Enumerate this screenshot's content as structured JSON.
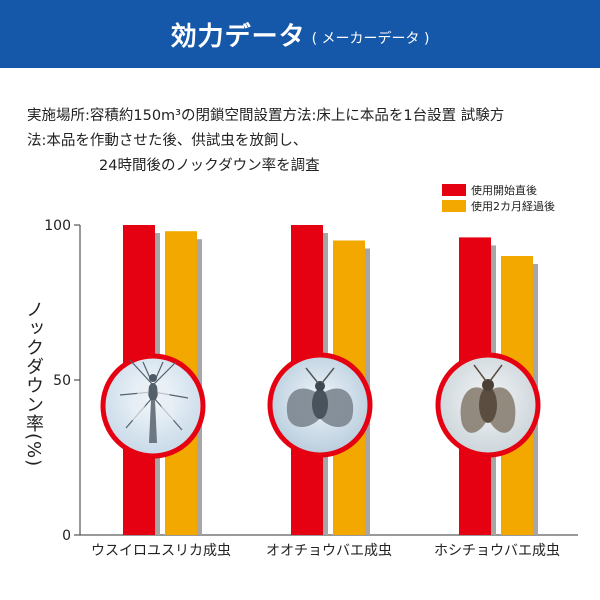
{
  "header": {
    "title": "効力データ",
    "subtitle": "( メーカーデータ )"
  },
  "description": {
    "line1": "実施場所:容積約150m³の閉鎖空間設置方法:床上に本品を1台設置 試験方",
    "line2": "法:本品を作動させた後、供試虫を放飼し、",
    "line3": "24時間後のノックダウン率を調査"
  },
  "colors": {
    "header": "#1557a8",
    "series1": "#e50012",
    "series2": "#f3a800",
    "shadow": "#a6a6a6"
  },
  "chart_data": {
    "type": "bar",
    "ylabel": "ノックダウン率(%)",
    "ylim": [
      0,
      100
    ],
    "yticks": [
      0,
      50,
      100
    ],
    "categories": [
      "ウスイロユスリカ成虫",
      "オオチョウバエ成虫",
      "ホシチョウバエ成虫"
    ],
    "series": [
      {
        "name": "使用開始直後",
        "values": [
          100,
          100,
          96
        ]
      },
      {
        "name": "使用2カ月経過後",
        "values": [
          98,
          95,
          90
        ]
      }
    ],
    "legend_position": "top-right",
    "grid": false
  }
}
